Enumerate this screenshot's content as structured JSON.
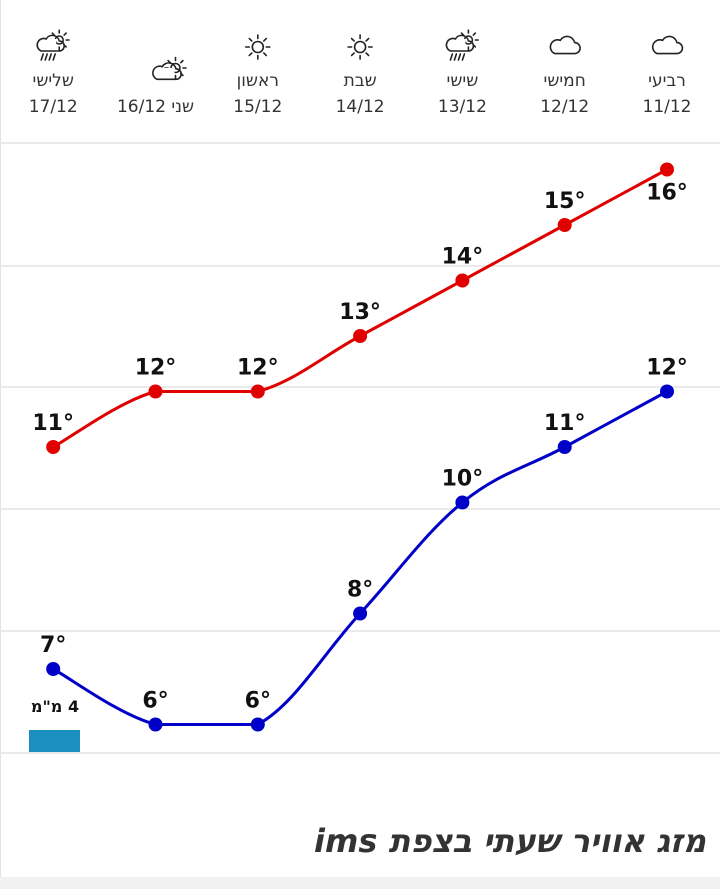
{
  "days": [
    {
      "name": "רביעי",
      "date": "11/12",
      "icon": "cloud-icon"
    },
    {
      "name": "חמישי",
      "date": "12/12",
      "icon": "cloud-icon"
    },
    {
      "name": "שישי",
      "date": "13/12",
      "icon": "sun-cloud-rain-icon"
    },
    {
      "name": "שבת",
      "date": "14/12",
      "icon": "sun-icon"
    },
    {
      "name": "ראשון",
      "date": "15/12",
      "icon": "sun-icon"
    },
    {
      "name": "שני 16/12",
      "date": "",
      "icon": "sun-cloud-icon"
    },
    {
      "name": "שלישי",
      "date": "17/12",
      "icon": "sun-cloud-rain-icon"
    }
  ],
  "chart_data": {
    "type": "line",
    "categories": [
      "11/12",
      "12/12",
      "13/12",
      "14/12",
      "15/12",
      "16/12",
      "17/12"
    ],
    "series": [
      {
        "key": "max",
        "color": "#e00000",
        "values": [
          16,
          15,
          14,
          13,
          12,
          12,
          11
        ]
      },
      {
        "key": "min",
        "color": "#0000c8",
        "values": [
          12,
          11,
          10,
          8,
          6,
          6,
          7
        ]
      }
    ],
    "unit_suffix": "°",
    "rain": [
      {
        "category": "17/12",
        "label": "4 מ\"מ",
        "value": 4,
        "color": "#1a8fc0"
      }
    ],
    "grid": true
  },
  "section_title": "מזג אוויר שעתי בצפת ims"
}
